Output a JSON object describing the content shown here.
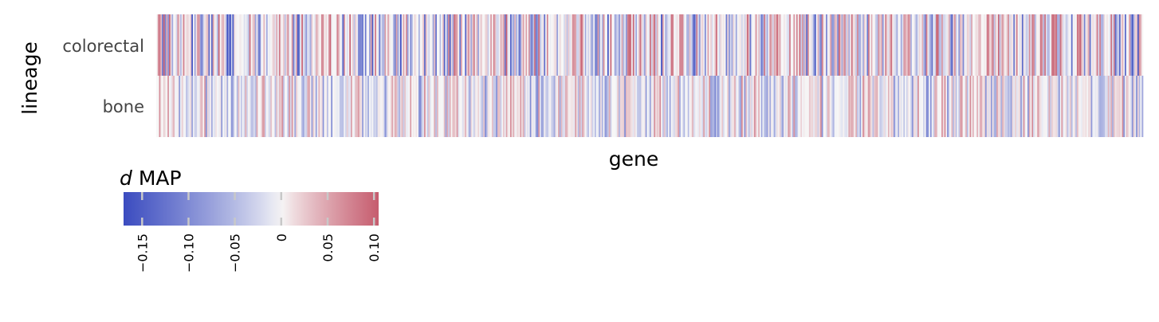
{
  "chart_data": {
    "type": "heatmap",
    "xlabel": "gene",
    "ylabel": "lineage",
    "rows": [
      "colorectal",
      "bone"
    ],
    "n_columns": 700,
    "colormap": {
      "name": "coolwarm",
      "low_color": "#3b4cc0",
      "mid_color": "#f7f7f7",
      "high_color": "#c65c6e",
      "vmin": -0.17,
      "vmax": 0.105,
      "center": 0
    },
    "value_ranges": {
      "colorectal": [
        -0.17,
        0.1
      ],
      "bone": [
        -0.1,
        0.07
      ]
    },
    "colorbar": {
      "title_italic": "d",
      "title_rest": " MAP",
      "ticks": [
        {
          "value": -0.15,
          "label": "−0.15"
        },
        {
          "value": -0.1,
          "label": "−0.10"
        },
        {
          "value": -0.05,
          "label": "−0.05"
        },
        {
          "value": 0,
          "label": "0"
        },
        {
          "value": 0.05,
          "label": "0.05"
        },
        {
          "value": 0.1,
          "label": "0.10"
        }
      ]
    }
  }
}
